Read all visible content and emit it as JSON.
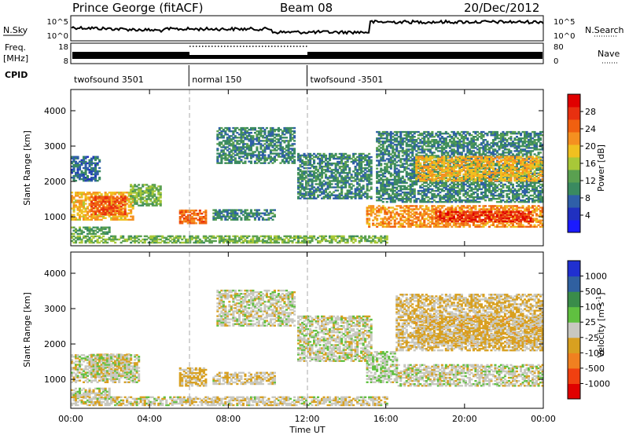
{
  "header": {
    "station": "Prince George (fitACF)",
    "beam": "Beam 08",
    "date": "20/Dec/2012"
  },
  "strip_labels": {
    "nsky": "N.Sky",
    "nsky_ticks": [
      "10^5",
      "10^0"
    ],
    "nsearch": "N.Search",
    "nsearch_ticks": [
      "10^5",
      "10^0"
    ],
    "freq": "Freq.",
    "freq_unit": "[MHz]",
    "freq_ticks": [
      "18",
      "8"
    ],
    "nave": "Nave",
    "nave_ticks": [
      "80",
      "0"
    ],
    "cpid": "CPID"
  },
  "cpid_segments": [
    {
      "label": "twofsound 3501",
      "start_hour": 0,
      "end_hour": 6
    },
    {
      "label": "normal 150",
      "start_hour": 6,
      "end_hour": 12
    },
    {
      "label": "twofsound -3501",
      "start_hour": 12,
      "end_hour": 24
    }
  ],
  "colorbars": {
    "power": {
      "label": "Power [dB]",
      "ticks": [
        "4",
        "8",
        "12",
        "16",
        "20",
        "24",
        "28"
      ],
      "colors": [
        "#1a1aff",
        "#2030c0",
        "#2f5fa8",
        "#3a8a60",
        "#5aa050",
        "#a8c838",
        "#f0c020",
        "#f59020",
        "#f06010",
        "#e83010",
        "#e00000"
      ]
    },
    "velocity": {
      "label": "Velocity",
      "unit": "[m s",
      "unit_sup": "-1",
      "unit_end": "]",
      "ticks": [
        "1000",
        "500",
        "100",
        "25",
        "-25",
        "-100",
        "-500",
        "-1000"
      ],
      "colors": [
        "#2030d0",
        "#3060a0",
        "#3a8c4a",
        "#60c040",
        "#c8c8c0",
        "#d8a020",
        "#f08020",
        "#f04010",
        "#e00000"
      ]
    }
  },
  "chart_data": [
    {
      "type": "heatmap",
      "title": "",
      "quantity": "Power",
      "xlabel": "Time UT",
      "ylabel": "Slant Range [km]",
      "xlim_hours": [
        0,
        24
      ],
      "ylim_km": [
        180,
        4600
      ],
      "x_ticks": [
        "00:00",
        "04:00",
        "08:00",
        "12:00",
        "16:00",
        "20:00",
        "00:00"
      ],
      "y_ticks": [
        "1000",
        "2000",
        "3000",
        "4000"
      ],
      "colorbar_range_db": [
        0,
        32
      ],
      "echo_regions": [
        {
          "t0": 0.0,
          "t1": 3.2,
          "r0": 900,
          "r1": 1700,
          "value": 20
        },
        {
          "t0": 1.0,
          "t1": 2.8,
          "r0": 1050,
          "r1": 1550,
          "value": 26
        },
        {
          "t0": 0.0,
          "t1": 2.0,
          "r0": 500,
          "r1": 700,
          "value": 12
        },
        {
          "t0": 0.0,
          "t1": 1.5,
          "r0": 2000,
          "r1": 2700,
          "value": 8
        },
        {
          "t0": 3.0,
          "t1": 4.5,
          "r0": 1300,
          "r1": 1900,
          "value": 14
        },
        {
          "t0": 5.5,
          "t1": 6.8,
          "r0": 800,
          "r1": 1200,
          "value": 24
        },
        {
          "t0": 7.2,
          "t1": 10.3,
          "r0": 900,
          "r1": 1200,
          "value": 10
        },
        {
          "t0": 7.4,
          "t1": 11.3,
          "r0": 2500,
          "r1": 3500,
          "value": 10
        },
        {
          "t0": 11.5,
          "t1": 15.2,
          "r0": 1500,
          "r1": 2800,
          "value": 10
        },
        {
          "t0": 15.0,
          "t1": 24.0,
          "r0": 700,
          "r1": 1300,
          "value": 22
        },
        {
          "t0": 18.5,
          "t1": 23.5,
          "r0": 850,
          "r1": 1150,
          "value": 28
        },
        {
          "t0": 15.5,
          "t1": 24.0,
          "r0": 1400,
          "r1": 3400,
          "value": 10
        },
        {
          "t0": 17.5,
          "t1": 24.0,
          "r0": 2000,
          "r1": 2700,
          "value": 20
        },
        {
          "t0": 0.0,
          "t1": 16.0,
          "r0": 250,
          "r1": 450,
          "value": 14
        }
      ]
    },
    {
      "type": "heatmap",
      "title": "",
      "quantity": "Velocity",
      "xlabel": "Time UT",
      "ylabel": "Slant Range [km]",
      "xlim_hours": [
        0,
        24
      ],
      "ylim_km": [
        180,
        4600
      ],
      "x_ticks": [
        "00:00",
        "04:00",
        "08:00",
        "12:00",
        "16:00",
        "20:00",
        "00:00"
      ],
      "y_ticks": [
        "1000",
        "2000",
        "3000",
        "4000"
      ],
      "colorbar_range_ms": [
        -1000,
        1000
      ],
      "echo_regions": [
        {
          "t0": 1.0,
          "t1": 3.0,
          "r0": 1050,
          "r1": 1700,
          "value": -150
        },
        {
          "t0": 0.0,
          "t1": 3.5,
          "r0": 900,
          "r1": 1700,
          "value": 0
        },
        {
          "t0": 0.0,
          "t1": 2.0,
          "r0": 450,
          "r1": 750,
          "value": 0
        },
        {
          "t0": 5.5,
          "t1": 6.8,
          "r0": 800,
          "r1": 1300,
          "value": -150
        },
        {
          "t0": 7.2,
          "t1": 10.3,
          "r0": 850,
          "r1": 1200,
          "value": -60
        },
        {
          "t0": 7.4,
          "t1": 11.3,
          "r0": 2500,
          "r1": 3500,
          "value": 0
        },
        {
          "t0": 11.5,
          "t1": 15.2,
          "r0": 1500,
          "r1": 2800,
          "value": 0
        },
        {
          "t0": 15.0,
          "t1": 16.6,
          "r0": 900,
          "r1": 1800,
          "value": 60
        },
        {
          "t0": 16.5,
          "t1": 24.0,
          "r0": 800,
          "r1": 1400,
          "value": 0
        },
        {
          "t0": 17.5,
          "t1": 24.0,
          "r0": 2000,
          "r1": 2800,
          "value": -200
        },
        {
          "t0": 16.5,
          "t1": 24.0,
          "r0": 1800,
          "r1": 3400,
          "value": -120
        },
        {
          "t0": 0.0,
          "t1": 16.0,
          "r0": 250,
          "r1": 500,
          "value": -40
        }
      ]
    }
  ]
}
